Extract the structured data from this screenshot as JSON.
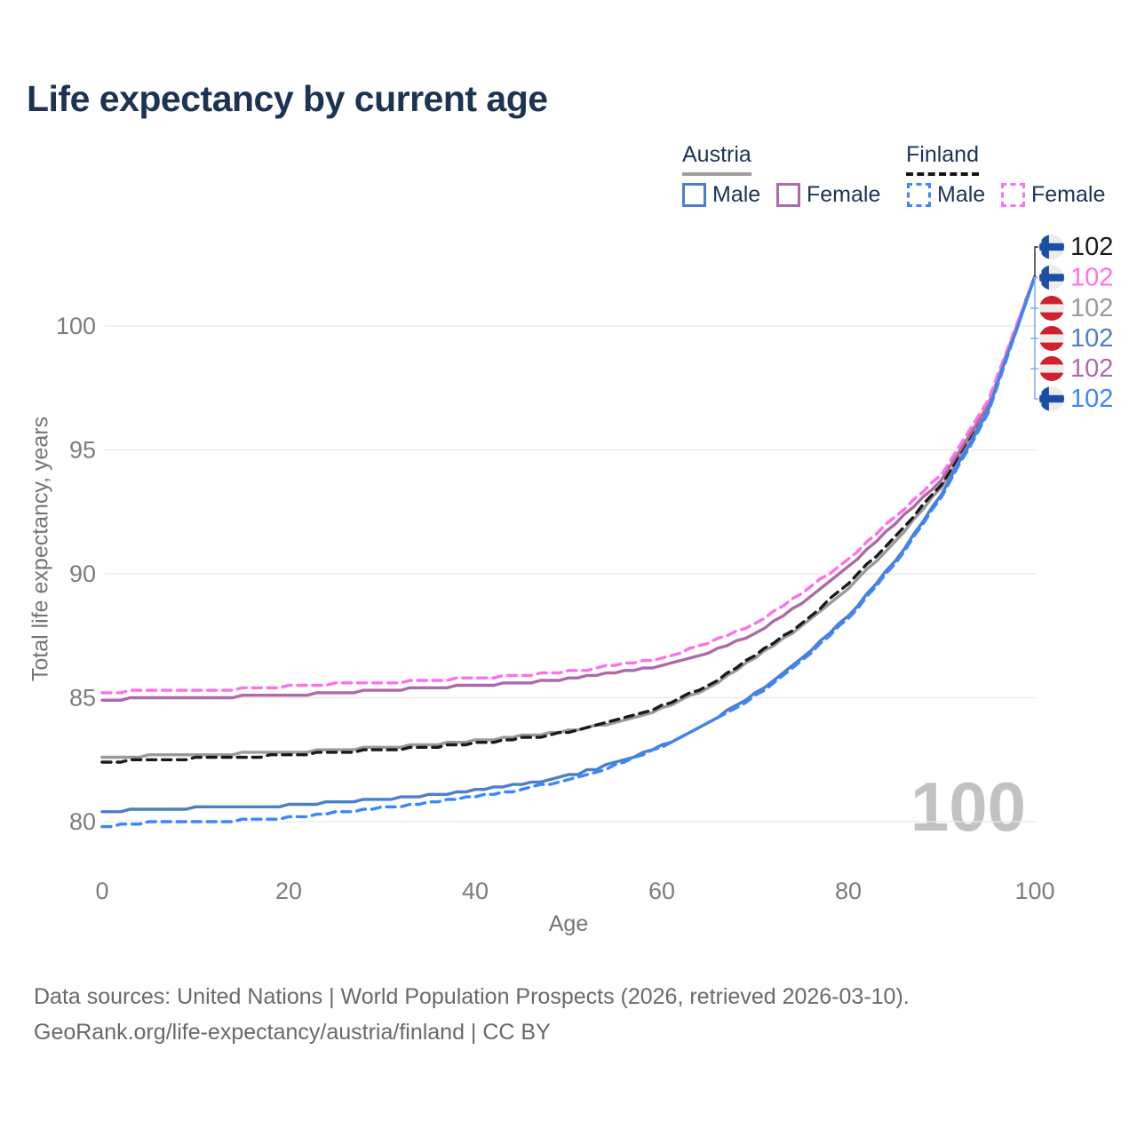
{
  "title": "Life expectancy by current age",
  "legend": {
    "groups": [
      {
        "label": "Austria",
        "rule_style": "solid",
        "rule_color": "#9e9e9e",
        "items": [
          {
            "label": "Male",
            "series": "at_male"
          },
          {
            "label": "Female",
            "series": "at_female"
          }
        ]
      },
      {
        "label": "Finland",
        "rule_style": "dashed",
        "rule_color": "#141414",
        "items": [
          {
            "label": "Male",
            "series": "fi_male"
          },
          {
            "label": "Female",
            "series": "fi_female"
          }
        ]
      }
    ]
  },
  "watermark": "100",
  "footer": {
    "line1": "Data sources: United Nations | World Population Prospects (2026, retrieved 2026-03-10).",
    "line2": "GeoRank.org/life-expectancy/austria/finland | CC BY"
  },
  "chart_data": {
    "type": "line",
    "title": "Life expectancy by current age",
    "xlabel": "Age",
    "ylabel": "Total life expectancy, years",
    "x_ticks": [
      0,
      20,
      40,
      60,
      80,
      100
    ],
    "y_ticks": [
      80,
      85,
      90,
      95,
      100
    ],
    "xlim": [
      0,
      100
    ],
    "ylim": [
      78.5,
      103
    ],
    "grid": "horizontal",
    "legend_position": "top-right",
    "ages": [
      0,
      5,
      10,
      15,
      20,
      25,
      30,
      35,
      40,
      45,
      50,
      55,
      60,
      65,
      70,
      75,
      80,
      85,
      90,
      95,
      100
    ],
    "series": [
      {
        "key": "at_total",
        "name": "Austria Total",
        "country": "austria",
        "sex": "total",
        "color": "#9a9a9a",
        "dash": false,
        "end_label": "102",
        "label_row": 2,
        "values": [
          82.55,
          82.65,
          82.7,
          82.75,
          82.8,
          82.9,
          83.0,
          83.1,
          83.25,
          83.45,
          83.65,
          84.0,
          84.55,
          85.4,
          86.6,
          87.9,
          89.4,
          91.3,
          93.5,
          96.7,
          102.0
        ]
      },
      {
        "key": "fi_total",
        "name": "Finland Total",
        "country": "finland",
        "sex": "total",
        "color": "#1a1a1a",
        "dash": true,
        "end_label": "102",
        "label_row": 0,
        "values": [
          82.4,
          82.5,
          82.55,
          82.6,
          82.7,
          82.8,
          82.9,
          83.0,
          83.15,
          83.35,
          83.6,
          84.05,
          84.65,
          85.5,
          86.7,
          88.0,
          89.6,
          91.5,
          93.6,
          96.8,
          102.0
        ]
      },
      {
        "key": "at_female",
        "name": "Austria Female",
        "country": "austria",
        "sex": "female",
        "color": "#ad6aa8",
        "dash": false,
        "end_label": "102",
        "label_row": 4,
        "values": [
          84.9,
          85.0,
          85.0,
          85.05,
          85.1,
          85.2,
          85.3,
          85.4,
          85.5,
          85.6,
          85.75,
          86.0,
          86.3,
          86.8,
          87.6,
          88.8,
          90.3,
          92.0,
          93.8,
          96.8,
          102.0
        ]
      },
      {
        "key": "fi_female",
        "name": "Finland Female",
        "country": "finland",
        "sex": "female",
        "color": "#ff70e8",
        "dash": true,
        "end_label": "102",
        "label_row": 1,
        "values": [
          85.2,
          85.3,
          85.3,
          85.35,
          85.45,
          85.55,
          85.6,
          85.7,
          85.8,
          85.9,
          86.05,
          86.3,
          86.6,
          87.2,
          88.0,
          89.2,
          90.6,
          92.3,
          94.0,
          97.0,
          102.0
        ]
      },
      {
        "key": "at_male",
        "name": "Austria Male",
        "country": "austria",
        "sex": "male",
        "color": "#4d7ec8",
        "dash": false,
        "end_label": "102",
        "label_row": 3,
        "values": [
          80.4,
          80.5,
          80.55,
          80.6,
          80.65,
          80.8,
          80.9,
          81.05,
          81.25,
          81.5,
          81.85,
          82.35,
          83.05,
          84.0,
          85.15,
          86.6,
          88.3,
          90.5,
          93.2,
          96.6,
          102.0
        ]
      },
      {
        "key": "fi_male",
        "name": "Finland Male",
        "country": "finland",
        "sex": "male",
        "color": "#3a86ff",
        "dash": true,
        "end_label": "102",
        "label_row": 5,
        "values": [
          79.8,
          79.95,
          80.0,
          80.05,
          80.15,
          80.35,
          80.55,
          80.75,
          81.0,
          81.3,
          81.7,
          82.25,
          83.0,
          83.95,
          85.05,
          86.5,
          88.2,
          90.4,
          93.1,
          96.5,
          102.0
        ]
      }
    ]
  }
}
